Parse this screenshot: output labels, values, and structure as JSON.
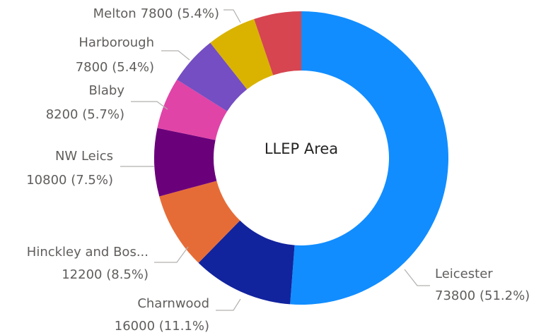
{
  "chart_data": {
    "type": "donut",
    "title": "LLEP Area",
    "categories": [
      "Leicester",
      "Charnwood",
      "Hinckley and Bos...",
      "NW Leics",
      "Blaby",
      "Harborough",
      "Melton",
      null
    ],
    "values": [
      73800,
      16000,
      12200,
      10800,
      8200,
      7800,
      7800,
      7500
    ],
    "value_labels": [
      "73800 (51.2%)",
      "16000 (11.1%)",
      "12200 (8.5%)",
      "10800 (7.5%)",
      "8200 (5.7%)",
      "7800 (5.4%)",
      "7800 (5.4%)",
      null
    ],
    "colors": [
      "#118dff",
      "#12239e",
      "#e66c37",
      "#6b007b",
      "#e044a7",
      "#744ec2",
      "#d9b300",
      "#d64550"
    ]
  }
}
